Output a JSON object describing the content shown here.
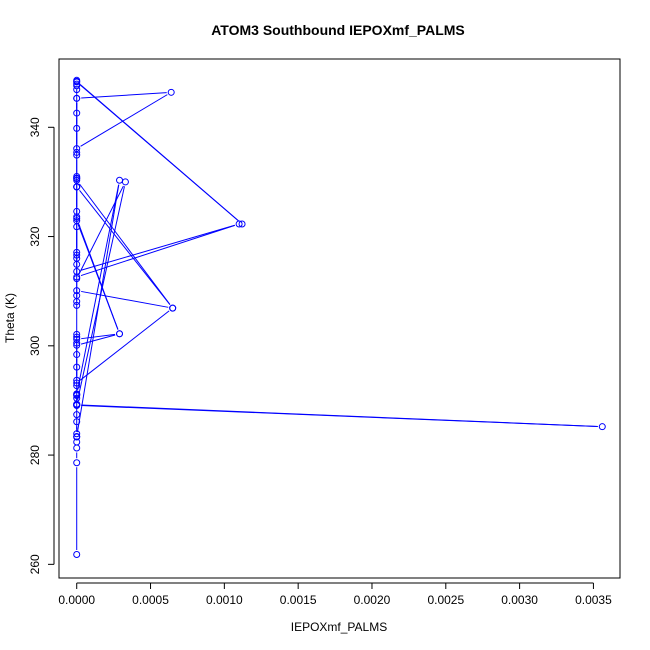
{
  "chart_data": {
    "type": "line",
    "title": "ATOM3 Southbound IEPOXmf_PALMS",
    "xlabel": "IEPOXmf_PALMS",
    "ylabel": "Theta (K)",
    "xlim": [
      -0.00012,
      0.00368
    ],
    "ylim": [
      257.5,
      352.5
    ],
    "xticks": [
      0,
      0.0005,
      0.001,
      0.0015,
      0.002,
      0.0025,
      0.003,
      0.0035
    ],
    "xtick_labels": [
      "0.0000",
      "0.0005",
      "0.0010",
      "0.0015",
      "0.0020",
      "0.0025",
      "0.0030",
      "0.0035"
    ],
    "yticks": [
      260,
      280,
      300,
      320,
      340
    ],
    "ytick_labels": [
      "260",
      "280",
      "300",
      "320",
      "340"
    ],
    "grid": false,
    "legend": "none",
    "color": "#0000ff",
    "series": [
      {
        "x": [
          0,
          0,
          0,
          0,
          0,
          0,
          0,
          0,
          0,
          0,
          0,
          0,
          0,
          0,
          0.00356,
          0,
          0,
          0,
          0,
          0,
          0,
          0,
          0.00029,
          0,
          0,
          0,
          0,
          0,
          0.00065,
          0,
          0,
          0,
          0,
          0,
          0.0011,
          0,
          0,
          0,
          0,
          0,
          0,
          0,
          0.00029,
          0,
          0,
          0,
          0,
          0,
          0.00065,
          0,
          0,
          0,
          0,
          0.00029,
          0,
          0,
          0.00033,
          0,
          0,
          0,
          0,
          0,
          0,
          0.00064,
          0,
          0,
          0,
          0,
          0.00112,
          0,
          0,
          0,
          0,
          0,
          0
        ],
        "y": [
          261.8,
          278.6,
          281.3,
          282.4,
          283.3,
          283.9,
          286.1,
          287.4,
          289.1,
          289.3,
          290.9,
          291.2,
          290.4,
          289.2,
          285.2,
          289.1,
          291.1,
          292.7,
          293.7,
          296.1,
          298.4,
          300.1,
          302.2,
          301.2,
          300.5,
          301.6,
          302.1,
          293.2,
          306.9,
          310.1,
          309.2,
          308.1,
          307.4,
          312.6,
          322.3,
          313.6,
          314.9,
          316.0,
          316.6,
          317.1,
          321.8,
          322.9,
          302.2,
          323.3,
          323.6,
          324.6,
          329.1,
          330.3,
          306.9,
          329.1,
          330.6,
          331.0,
          283.4,
          330.3,
          291.1,
          289.3,
          330.0,
          312.3,
          334.9,
          335.4,
          339.8,
          345.3,
          336.1,
          346.4,
          345.3,
          346.9,
          347.6,
          348.3,
          322.3,
          348.4,
          348.6,
          347.9,
          342.6,
          330.7,
          329.1
        ]
      }
    ]
  }
}
